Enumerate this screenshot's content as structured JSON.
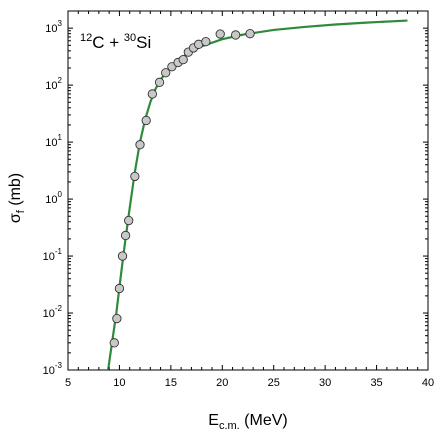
{
  "chart_data": {
    "type": "scatter",
    "annotation": {
      "mass_a": "12",
      "elem_a": "C",
      "plus": " + ",
      "mass_b": "30",
      "elem_b": "Si"
    },
    "xlabel": {
      "main": "E",
      "sub": "c.m.",
      "unit": " (MeV)"
    },
    "ylabel": {
      "main": "σ",
      "sub": "f",
      "unit": " (mb)"
    },
    "xlim": [
      5,
      40
    ],
    "ylim": [
      0.001,
      2000
    ],
    "yscale": "log",
    "x_ticks": [
      5,
      10,
      15,
      20,
      25,
      30,
      35,
      40
    ],
    "y_ticks": [
      {
        "value": 0.001,
        "base": "10",
        "exp": "-3"
      },
      {
        "value": 0.01,
        "base": "10",
        "exp": "-2"
      },
      {
        "value": 0.1,
        "base": "10",
        "exp": "-1"
      },
      {
        "value": 1,
        "base": "10",
        "exp": "0"
      },
      {
        "value": 10,
        "base": "10",
        "exp": "1"
      },
      {
        "value": 100,
        "base": "10",
        "exp": "2"
      },
      {
        "value": 1000,
        "base": "10",
        "exp": "3"
      }
    ],
    "grid": false,
    "series": [
      {
        "kind": "points",
        "marker_fill": "#c8c8c8",
        "marker_stroke": "#333333",
        "points": [
          {
            "x": 9.5,
            "y": 0.003
          },
          {
            "x": 9.75,
            "y": 0.008
          },
          {
            "x": 10.0,
            "y": 0.027
          },
          {
            "x": 10.3,
            "y": 0.1
          },
          {
            "x": 10.6,
            "y": 0.23
          },
          {
            "x": 10.9,
            "y": 0.42
          },
          {
            "x": 11.5,
            "y": 2.5
          },
          {
            "x": 12.0,
            "y": 9.0
          },
          {
            "x": 12.6,
            "y": 24
          },
          {
            "x": 13.2,
            "y": 70
          },
          {
            "x": 13.9,
            "y": 112
          },
          {
            "x": 14.5,
            "y": 165
          },
          {
            "x": 15.1,
            "y": 210
          },
          {
            "x": 15.7,
            "y": 250
          },
          {
            "x": 16.2,
            "y": 280
          },
          {
            "x": 16.7,
            "y": 380
          },
          {
            "x": 17.2,
            "y": 450
          },
          {
            "x": 17.7,
            "y": 520
          },
          {
            "x": 18.4,
            "y": 580
          },
          {
            "x": 19.8,
            "y": 790
          },
          {
            "x": 21.3,
            "y": 760
          },
          {
            "x": 22.7,
            "y": 800
          }
        ]
      },
      {
        "kind": "curve",
        "color": "#2e8b3a",
        "points": [
          {
            "x": 8.9,
            "y": 0.001
          },
          {
            "x": 9.3,
            "y": 0.0032
          },
          {
            "x": 9.7,
            "y": 0.01
          },
          {
            "x": 10.1,
            "y": 0.04
          },
          {
            "x": 10.5,
            "y": 0.15
          },
          {
            "x": 11.0,
            "y": 0.7
          },
          {
            "x": 11.5,
            "y": 3.0
          },
          {
            "x": 12.0,
            "y": 10
          },
          {
            "x": 12.5,
            "y": 25
          },
          {
            "x": 13.0,
            "y": 50
          },
          {
            "x": 13.5,
            "y": 85
          },
          {
            "x": 14.0,
            "y": 125
          },
          {
            "x": 15.0,
            "y": 210
          },
          {
            "x": 16.0,
            "y": 300
          },
          {
            "x": 17.0,
            "y": 390
          },
          {
            "x": 18.0,
            "y": 480
          },
          {
            "x": 20.0,
            "y": 640
          },
          {
            "x": 22.0,
            "y": 770
          },
          {
            "x": 25.0,
            "y": 930
          },
          {
            "x": 28.0,
            "y": 1050
          },
          {
            "x": 31.0,
            "y": 1160
          },
          {
            "x": 34.0,
            "y": 1250
          },
          {
            "x": 38.0,
            "y": 1360
          }
        ]
      }
    ]
  }
}
